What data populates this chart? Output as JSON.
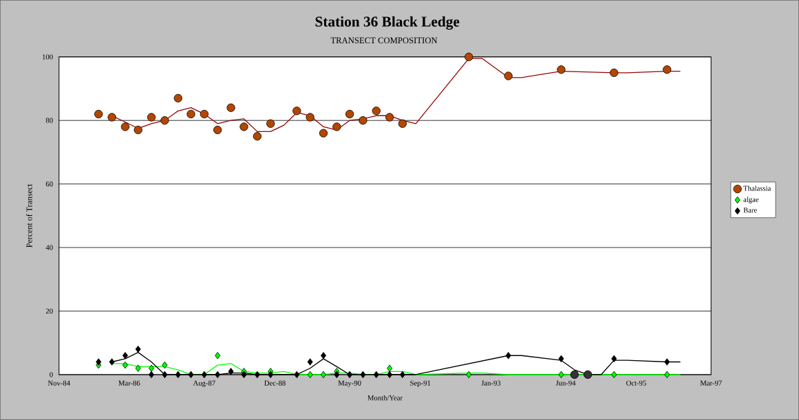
{
  "chart_data": {
    "type": "scatter",
    "title": "Station 36     Black Ledge",
    "subtitle": "TRANSECT COMPOSITION",
    "xlabel": "Month/Year",
    "ylabel": "Percent of Transect",
    "x": [
      "1985-08",
      "1985-11",
      "1986-02",
      "1986-05",
      "1986-08",
      "1986-11",
      "1987-02",
      "1987-05",
      "1987-08",
      "1987-11",
      "1988-02",
      "1988-05",
      "1988-08",
      "1988-11",
      "1989-05",
      "1989-08",
      "1989-11",
      "1990-02",
      "1990-05",
      "1990-08",
      "1990-11",
      "1991-02",
      "1991-05",
      "1992-08",
      "1993-05",
      "1994-05",
      "1995-05",
      "1996-05"
    ],
    "series": [
      {
        "name": "Thalassia",
        "color": "#b34700",
        "marker": "circle",
        "values": [
          82,
          81,
          78,
          77,
          81,
          80,
          87,
          82,
          82,
          77,
          84,
          78,
          75,
          79,
          83,
          81,
          76,
          78,
          82,
          80,
          83,
          81,
          79,
          100,
          94,
          96,
          95,
          96
        ]
      },
      {
        "name": "algae",
        "color": "#00ff00",
        "marker": "diamond",
        "values": [
          3,
          null,
          3,
          2,
          2,
          3,
          null,
          null,
          null,
          6,
          null,
          1,
          null,
          1,
          null,
          0,
          0,
          1,
          null,
          null,
          null,
          2,
          null,
          0,
          null,
          0,
          0,
          0
        ]
      },
      {
        "name": "Bare",
        "color": "#000000",
        "marker": "diamond",
        "values": [
          4,
          4,
          6,
          8,
          0,
          0,
          0,
          0,
          0,
          0,
          1,
          0,
          0,
          0,
          0,
          4,
          6,
          0,
          0,
          0,
          0,
          0,
          0,
          null,
          6,
          5,
          5,
          4
        ]
      },
      {
        "type": "line",
        "color": "#990000",
        "marker": "none",
        "x": [
          "1985-11",
          "1986-02",
          "1986-05",
          "1986-08",
          "1986-11",
          "1987-02",
          "1987-05",
          "1987-08",
          "1987-11",
          "1988-02",
          "1988-05",
          "1988-08",
          "1988-11",
          "1989-02",
          "1989-05",
          "1989-08",
          "1989-11",
          "1990-02",
          "1990-05",
          "1990-08",
          "1990-11",
          "1991-02",
          "1991-05",
          "1991-08",
          "1992-08",
          "1992-11",
          "1993-05",
          "1993-08",
          "1994-05",
          "1995-05",
          "1995-08",
          "1996-05",
          "1996-08"
        ],
        "values": [
          81.5,
          79.5,
          77.5,
          79,
          80,
          83,
          84,
          82,
          79,
          80,
          80.5,
          76.5,
          76.5,
          78.5,
          82.5,
          81.5,
          78,
          77,
          80,
          80.5,
          81.5,
          81.5,
          80,
          79,
          99.5,
          99.5,
          93.5,
          93.5,
          95.5,
          95,
          95,
          95.5,
          95.5
        ]
      },
      {
        "type": "line",
        "color": "#00ff00",
        "marker": "none",
        "x": [
          "1985-11",
          "1986-02",
          "1986-05",
          "1986-08",
          "1986-11",
          "1987-02",
          "1987-05",
          "1987-08",
          "1987-11",
          "1988-02",
          "1988-05",
          "1988-08",
          "1988-11",
          "1989-02",
          "1989-05",
          "1989-08",
          "1989-11",
          "1990-02",
          "1990-05",
          "1990-08",
          "1990-11",
          "1991-02",
          "1991-05",
          "1991-08",
          "1992-08",
          "1992-11",
          "1993-05",
          "1996-08"
        ],
        "values": [
          3.5,
          3.5,
          2.5,
          2.5,
          2.5,
          1.5,
          0,
          0,
          3,
          3.5,
          1,
          0.5,
          0.5,
          1,
          0,
          0,
          0,
          0.5,
          0.5,
          0,
          0,
          1,
          1,
          0,
          0.5,
          0.5,
          0,
          0
        ]
      },
      {
        "type": "line",
        "color": "#000000",
        "marker": "none",
        "x": [
          "1985-11",
          "1986-02",
          "1986-05",
          "1986-08",
          "1986-11",
          "1987-11",
          "1988-02",
          "1988-05",
          "1988-08",
          "1989-05",
          "1989-08",
          "1989-11",
          "1990-02",
          "1990-05",
          "1991-08",
          "1993-05",
          "1993-08",
          "1994-05",
          "1994-08",
          "1994-11",
          "1995-02",
          "1995-05",
          "1995-08",
          "1996-05",
          "1996-08"
        ],
        "values": [
          4,
          5,
          7,
          4,
          0,
          0,
          0.5,
          0.5,
          0,
          0,
          2,
          5,
          2.5,
          0,
          0,
          6,
          6,
          4.5,
          1.5,
          0,
          0,
          4.5,
          4.5,
          4,
          4
        ]
      },
      {
        "color": "#333333",
        "marker": "circle",
        "x": [
          "1994-08",
          "1994-11"
        ],
        "values": [
          0,
          0
        ]
      }
    ],
    "xlim": [
      "1984-11",
      "1997-03"
    ],
    "xticks": [
      {
        "value": "1984-11",
        "label": "Nov-84"
      },
      {
        "value": "1986-03",
        "label": "Mar-86"
      },
      {
        "value": "1987-08",
        "label": "Aug-87"
      },
      {
        "value": "1988-12",
        "label": "Dec-88"
      },
      {
        "value": "1990-05",
        "label": "May-90"
      },
      {
        "value": "1991-09",
        "label": "Sep-91"
      },
      {
        "value": "1993-01",
        "label": "Jan-93"
      },
      {
        "value": "1994-06",
        "label": "Jun-94"
      },
      {
        "value": "1995-10",
        "label": "Oct-95"
      },
      {
        "value": "1997-03",
        "label": "Mar-97"
      }
    ],
    "ylim": [
      0,
      100
    ],
    "yticks": [
      0,
      20,
      40,
      60,
      80,
      100
    ],
    "grid": "y",
    "legend": "right"
  }
}
